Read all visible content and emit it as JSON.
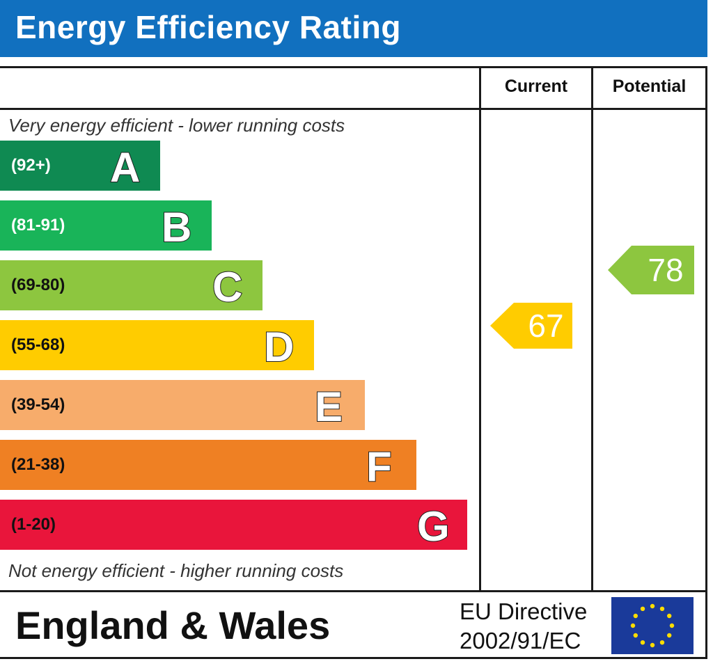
{
  "header": {
    "title": "Energy Efficiency Rating"
  },
  "columns": {
    "current": "Current",
    "potential": "Potential"
  },
  "captions": {
    "top": "Very energy efficient - lower running costs",
    "bottom": "Not energy efficient - higher running costs"
  },
  "chart_data": {
    "type": "bar",
    "title": "Energy Efficiency Rating",
    "categories": [
      "A",
      "B",
      "C",
      "D",
      "E",
      "F",
      "G"
    ],
    "bands": [
      {
        "letter": "A",
        "range": "(92+)",
        "color": "#0f8a52",
        "text_color": "#ffffff"
      },
      {
        "letter": "B",
        "range": "(81-91)",
        "color": "#19b459",
        "text_color": "#ffffff"
      },
      {
        "letter": "C",
        "range": "(69-80)",
        "color": "#8dc63f",
        "text_color": "#111111"
      },
      {
        "letter": "D",
        "range": "(55-68)",
        "color": "#ffcc00",
        "text_color": "#111111"
      },
      {
        "letter": "E",
        "range": "(39-54)",
        "color": "#f7ac6b",
        "text_color": "#111111"
      },
      {
        "letter": "F",
        "range": "(21-38)",
        "color": "#ef8023",
        "text_color": "#111111"
      },
      {
        "letter": "G",
        "range": "(1-20)",
        "color": "#e9153b",
        "text_color": "#111111"
      }
    ],
    "current": {
      "value": 67,
      "color": "#ffcc00"
    },
    "potential": {
      "value": 78,
      "color": "#8dc63f"
    }
  },
  "footer": {
    "region": "England & Wales",
    "directive_line1": "EU Directive",
    "directive_line2": "2002/91/EC"
  },
  "icons": {
    "flag": "eu-flag-icon"
  }
}
